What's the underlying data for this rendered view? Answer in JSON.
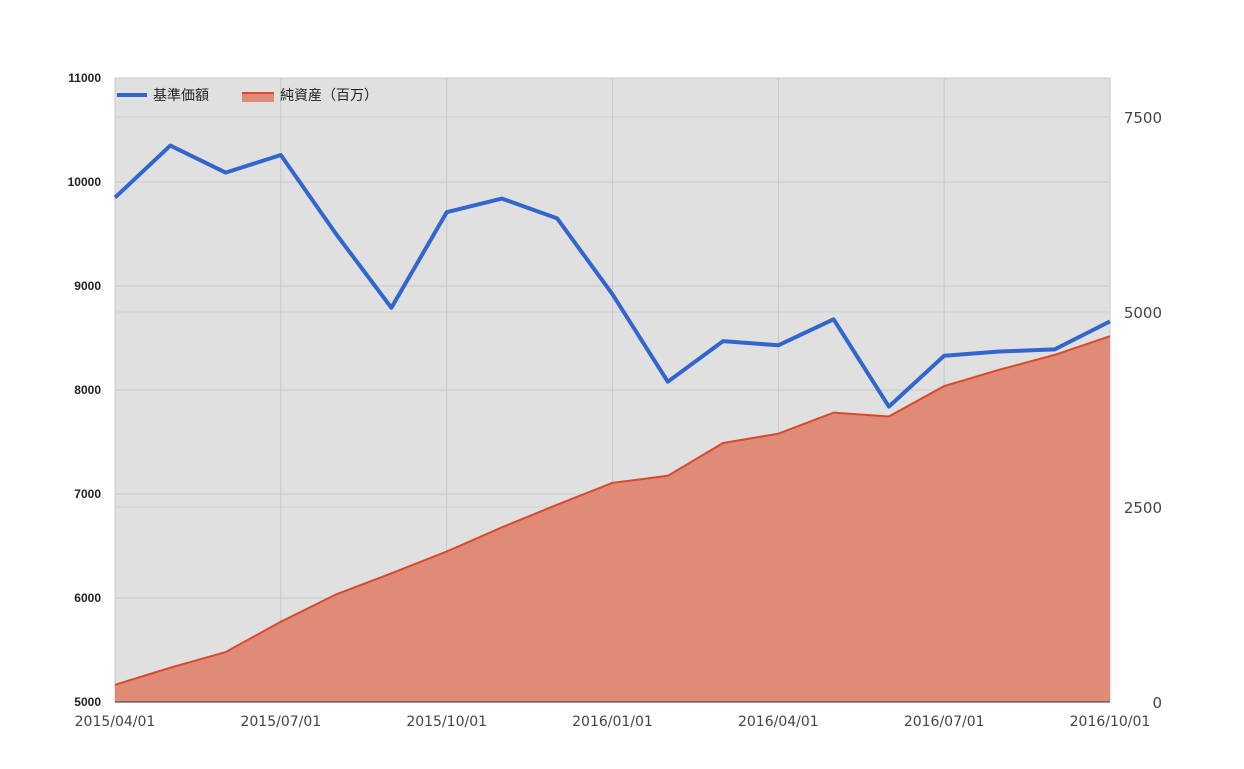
{
  "chart_data": {
    "type": "line+area",
    "x": [
      "2015/04/01",
      "2015/05/01",
      "2015/06/01",
      "2015/07/01",
      "2015/08/01",
      "2015/09/01",
      "2015/10/01",
      "2015/11/01",
      "2015/12/01",
      "2016/01/01",
      "2016/02/01",
      "2016/03/01",
      "2016/04/01",
      "2016/05/01",
      "2016/06/01",
      "2016/07/01",
      "2016/08/01",
      "2016/09/01",
      "2016/10/01"
    ],
    "x_tick_labels": [
      "2015/04/01",
      "2015/07/01",
      "2015/10/01",
      "2016/01/01",
      "2016/04/01",
      "2016/07/01",
      "2016/10/01"
    ],
    "series": [
      {
        "name": "基準価額",
        "type": "line",
        "axis": "left",
        "color": "#3366cc",
        "values": [
          9850,
          10350,
          10090,
          10260,
          9500,
          8790,
          9710,
          9840,
          9650,
          8920,
          8080,
          8470,
          8430,
          8680,
          7840,
          8330,
          8370,
          8390,
          8660
        ]
      },
      {
        "name": "純資産（百万）",
        "type": "area",
        "axis": "right",
        "color": "#dc3912",
        "fill": "#e08a78",
        "values": [
          220,
          440,
          640,
          1030,
          1380,
          1650,
          1930,
          2240,
          2530,
          2810,
          2900,
          3320,
          3440,
          3710,
          3660,
          4050,
          4260,
          4450,
          4690
        ]
      }
    ],
    "y_left": {
      "min": 5000,
      "max": 11000,
      "ticks": [
        "5000",
        "6000",
        "7000",
        "8000",
        "9000",
        "10000",
        "11000"
      ]
    },
    "y_right": {
      "min": 0,
      "max": 8000,
      "ticks": [
        "0",
        "2500",
        "5000",
        "7500"
      ]
    },
    "grid": true,
    "legend_position": "top-left",
    "plot_background": "#e0e0e0"
  }
}
